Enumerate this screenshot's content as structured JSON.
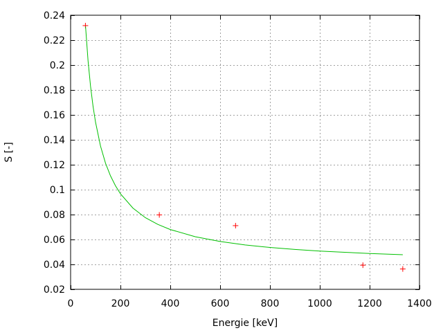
{
  "chart_data": {
    "type": "scatter",
    "title": "",
    "xlabel": "Energie [keV]",
    "ylabel": "S [-]",
    "xlim": [
      0,
      1400
    ],
    "ylim": [
      0.02,
      0.24
    ],
    "xticks": [
      0,
      200,
      400,
      600,
      800,
      1000,
      1200,
      1400
    ],
    "yticks": [
      0.02,
      0.04,
      0.06,
      0.08,
      0.1,
      0.12,
      0.14,
      0.16,
      0.18,
      0.2,
      0.22,
      0.24
    ],
    "xtick_labels": [
      "0",
      "200",
      "400",
      "600",
      "800",
      "1000",
      "1200",
      "1400"
    ],
    "ytick_labels": [
      "0.02",
      "0.04",
      "0.06",
      "0.08",
      "0.1",
      "0.12",
      "0.14",
      "0.16",
      "0.18",
      "0.2",
      "0.22",
      "0.24"
    ],
    "grid": true,
    "series": [
      {
        "type": "scatter",
        "marker": "plus",
        "color": "#ff0000",
        "x": [
          59.5,
          356,
          662,
          1173,
          1333
        ],
        "y": [
          0.2317,
          0.0797,
          0.0711,
          0.0394,
          0.0363
        ]
      },
      {
        "type": "line",
        "color": "#00c000",
        "x": [
          60,
          70,
          80,
          90,
          100,
          120,
          140,
          160,
          180,
          200,
          250,
          300,
          350,
          400,
          500,
          600,
          700,
          800,
          900,
          1000,
          1100,
          1200,
          1333
        ],
        "y": [
          0.2309,
          0.2035,
          0.183,
          0.167,
          0.1542,
          0.135,
          0.1213,
          0.1111,
          0.1031,
          0.0967,
          0.0852,
          0.0775,
          0.0721,
          0.068,
          0.0622,
          0.0584,
          0.0556,
          0.0536,
          0.052,
          0.0507,
          0.0497,
          0.0488,
          0.0478
        ]
      }
    ]
  }
}
